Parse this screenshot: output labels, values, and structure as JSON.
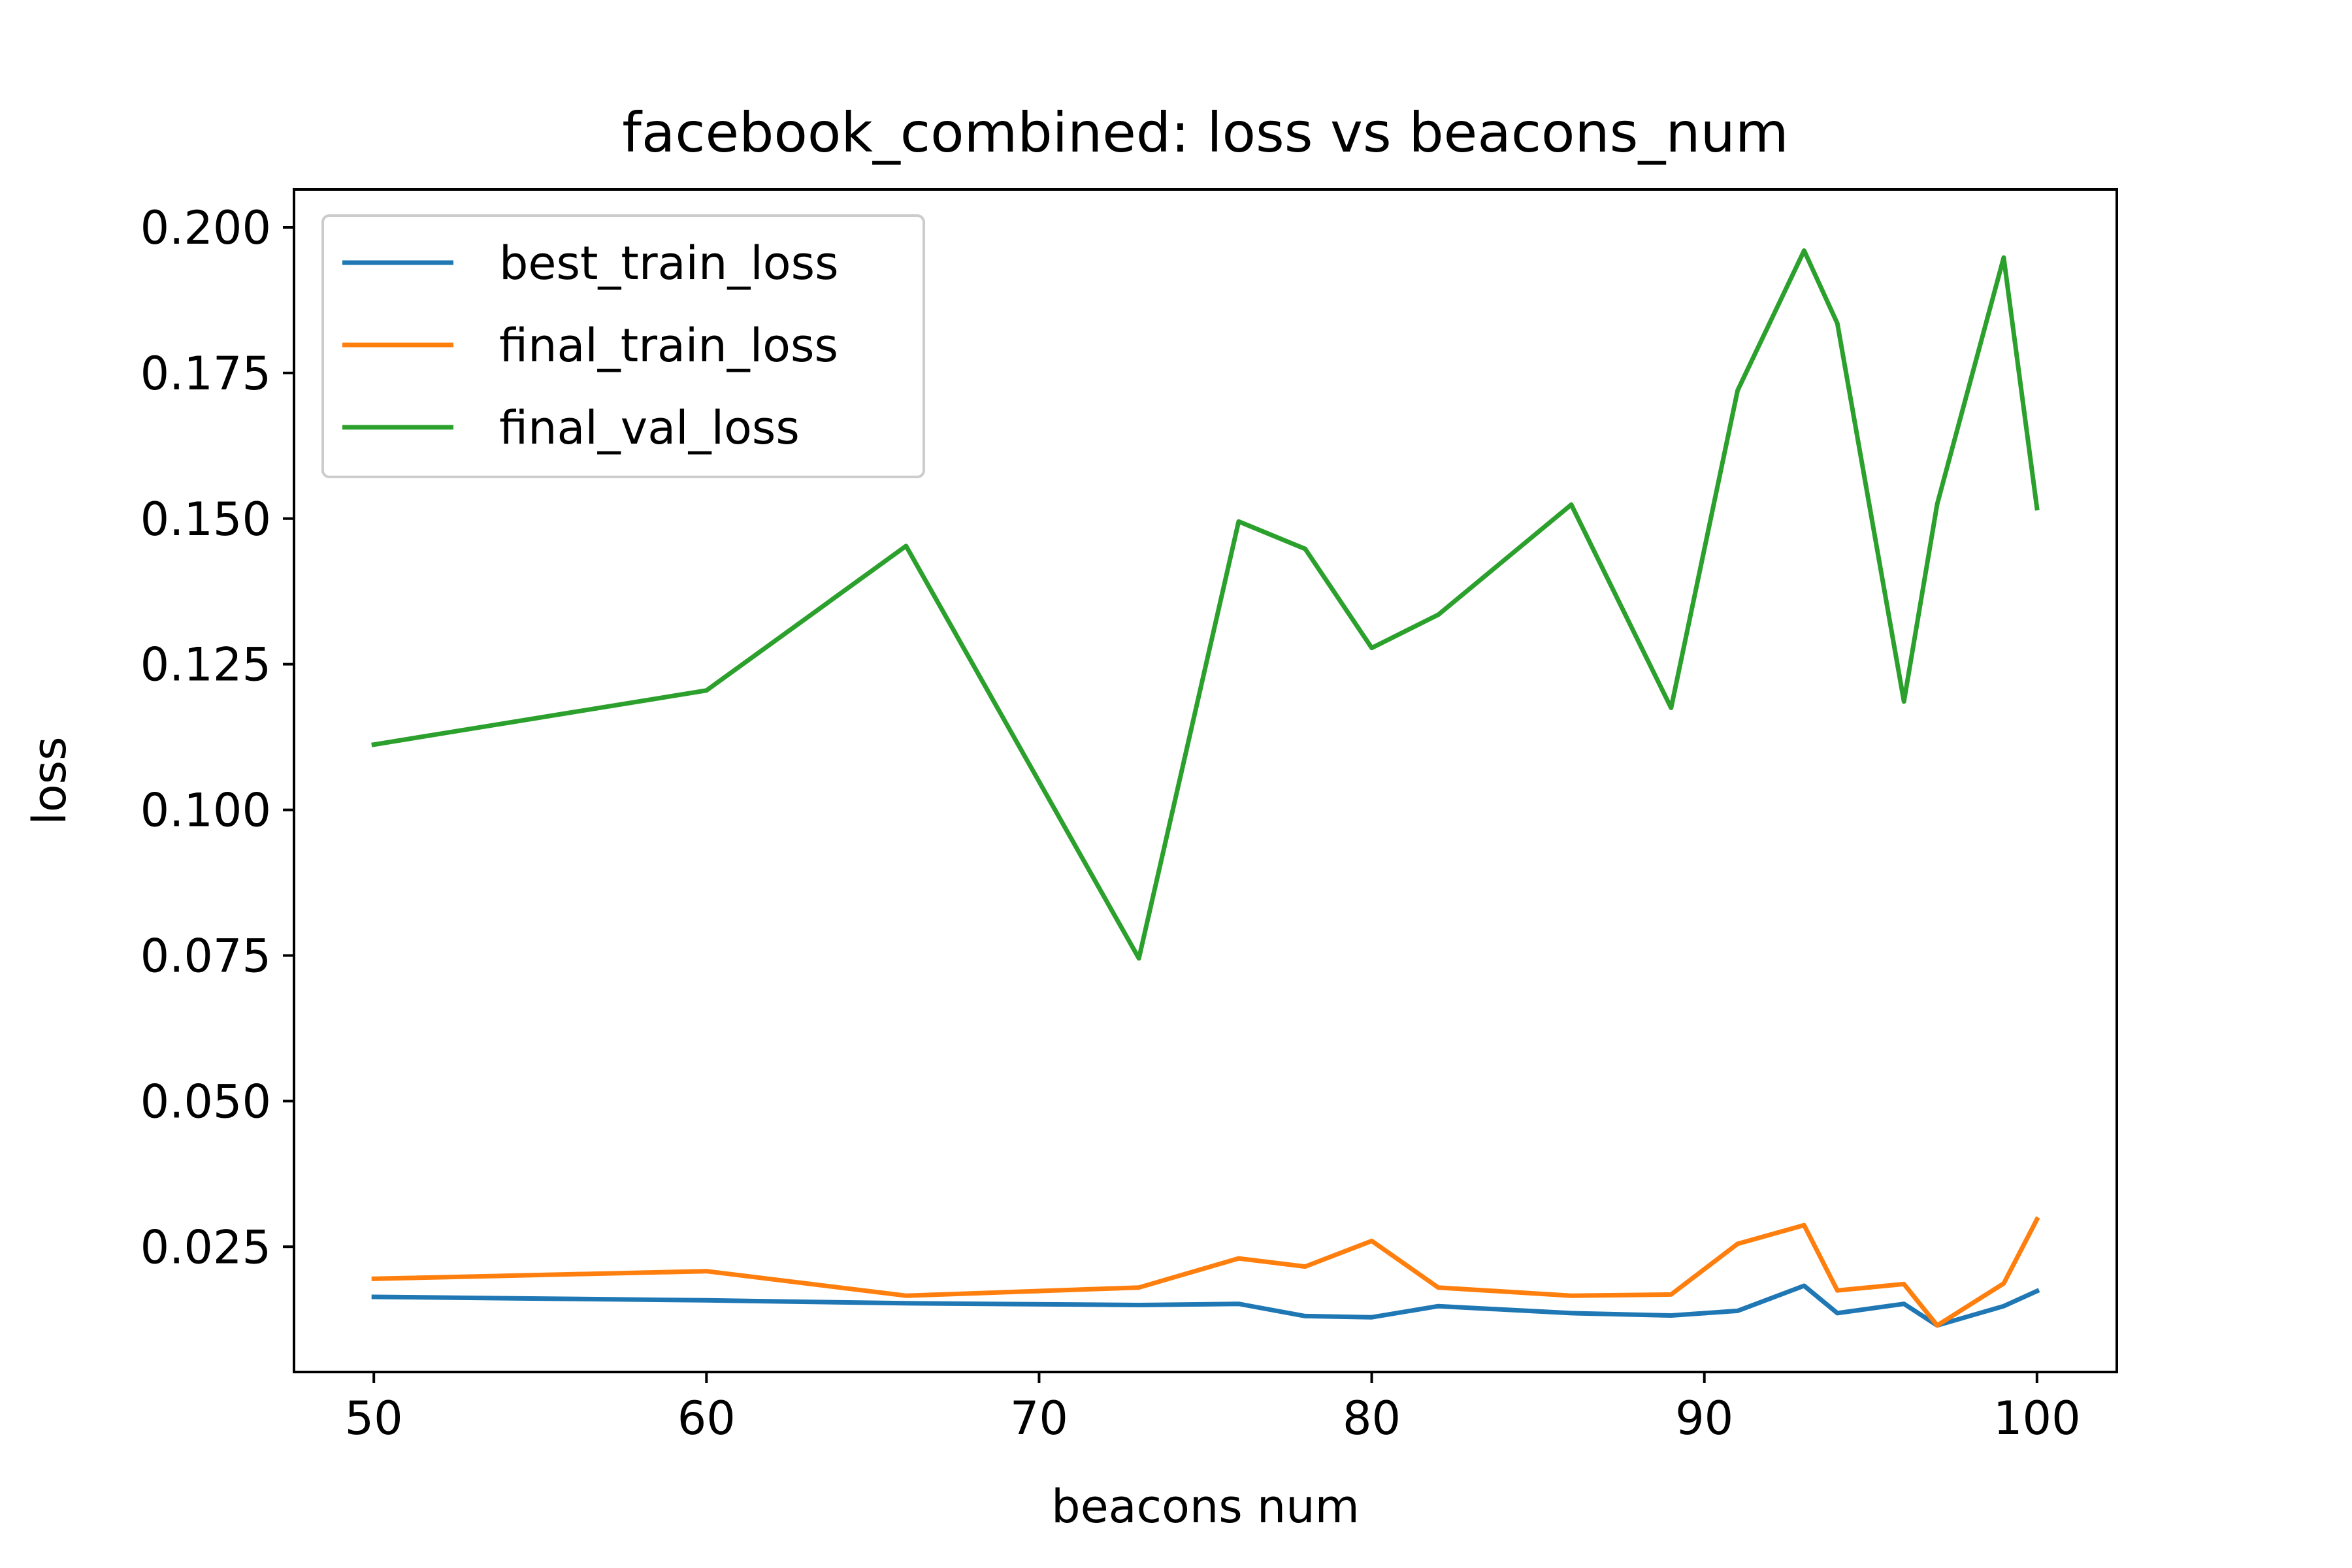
{
  "chart_data": {
    "type": "line",
    "title": "facebook_combined: loss vs beacons_num",
    "xlabel": "beacons num",
    "ylabel": "loss",
    "xlim": [
      47.6,
      102.4
    ],
    "ylim": [
      0.0035,
      0.2065
    ],
    "xticks": [
      50,
      60,
      70,
      80,
      90,
      100
    ],
    "xtick_labels": [
      "50",
      "60",
      "70",
      "80",
      "90",
      "100"
    ],
    "yticks": [
      0.025,
      0.05,
      0.075,
      0.1,
      0.125,
      0.15,
      0.175,
      0.2
    ],
    "ytick_labels": [
      "0.025",
      "0.050",
      "0.075",
      "0.100",
      "0.125",
      "0.150",
      "0.175",
      "0.200"
    ],
    "grid": false,
    "legend_position": "top-left",
    "x": [
      50,
      60,
      66,
      73,
      76,
      78,
      80,
      82,
      86,
      89,
      91,
      93,
      94,
      96,
      97,
      99,
      100
    ],
    "series": [
      {
        "name": "best_train_loss",
        "color": "#1f77b4",
        "values": [
          0.0164,
          0.0158,
          0.0153,
          0.015,
          0.0152,
          0.0131,
          0.0129,
          0.0148,
          0.0136,
          0.0132,
          0.014,
          0.0183,
          0.0136,
          0.0152,
          0.0115,
          0.0148,
          0.0174
        ]
      },
      {
        "name": "final_train_loss",
        "color": "#ff7f0e",
        "values": [
          0.0195,
          0.0208,
          0.0166,
          0.018,
          0.023,
          0.0216,
          0.026,
          0.018,
          0.0166,
          0.0168,
          0.0255,
          0.0287,
          0.0175,
          0.0186,
          0.0115,
          0.0187,
          0.0297
        ]
      },
      {
        "name": "final_val_loss",
        "color": "#2ca02c",
        "values": [
          0.1112,
          0.1205,
          0.1453,
          0.0745,
          0.1495,
          0.1448,
          0.1278,
          0.1335,
          0.1524,
          0.1175,
          0.172,
          0.196,
          0.1835,
          0.1186,
          0.1525,
          0.1948,
          0.1518
        ]
      }
    ]
  }
}
